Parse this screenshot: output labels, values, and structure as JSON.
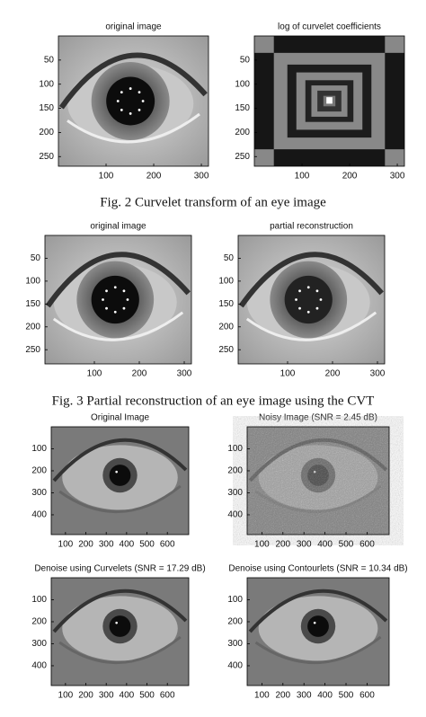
{
  "panels": [
    {
      "title": "original image",
      "xticks": [
        100,
        200,
        300
      ],
      "yticks": [
        50,
        100,
        150,
        200,
        250
      ],
      "xlim": [
        0,
        315
      ],
      "ylim": [
        0,
        270
      ]
    },
    {
      "title": "log of curvelet coefficients",
      "xticks": [
        100,
        200,
        300
      ],
      "yticks": [
        50,
        100,
        150,
        200,
        250
      ],
      "xlim": [
        0,
        315
      ],
      "ylim": [
        0,
        270
      ]
    },
    {
      "title": "original image",
      "xticks": [
        100,
        200,
        300
      ],
      "yticks": [
        50,
        100,
        150,
        200,
        250
      ],
      "xlim": [
        -10,
        316
      ],
      "ylim": [
        0,
        281
      ]
    },
    {
      "title": "partial reconstruction",
      "xticks": [
        100,
        200,
        300
      ],
      "yticks": [
        50,
        100,
        150,
        200,
        250
      ],
      "xlim": [
        -10,
        316
      ],
      "ylim": [
        0,
        281
      ]
    },
    {
      "title": "Original Image",
      "xticks": [
        100,
        200,
        300,
        400,
        500,
        600
      ],
      "yticks": [
        100,
        200,
        300,
        400
      ],
      "xlim": [
        30,
        705
      ],
      "ylim": [
        0,
        490
      ]
    },
    {
      "title": "Noisy Image (SNR = 2.45 dB)",
      "xticks": [
        100,
        200,
        300,
        400,
        500,
        600
      ],
      "yticks": [
        100,
        200,
        300,
        400
      ],
      "xlim": [
        30,
        705
      ],
      "ylim": [
        0,
        490
      ]
    },
    {
      "title": "Denoise using Curvelets (SNR = 17.29 dB)",
      "xticks": [
        100,
        200,
        300,
        400,
        500,
        600
      ],
      "yticks": [
        100,
        200,
        300,
        400
      ],
      "xlim": [
        30,
        705
      ],
      "ylim": [
        0,
        490
      ]
    },
    {
      "title": "Denoise using Contourlets (SNR = 10.34 dB)",
      "xticks": [
        100,
        200,
        300,
        400,
        500,
        600
      ],
      "yticks": [
        100,
        200,
        300,
        400
      ],
      "xlim": [
        30,
        705
      ],
      "ylim": [
        0,
        490
      ]
    }
  ],
  "captions": [
    "Fig. 2 Curvelet transform of an eye image",
    "Fig. 3 Partial reconstruction of an eye image using the CVT"
  ]
}
